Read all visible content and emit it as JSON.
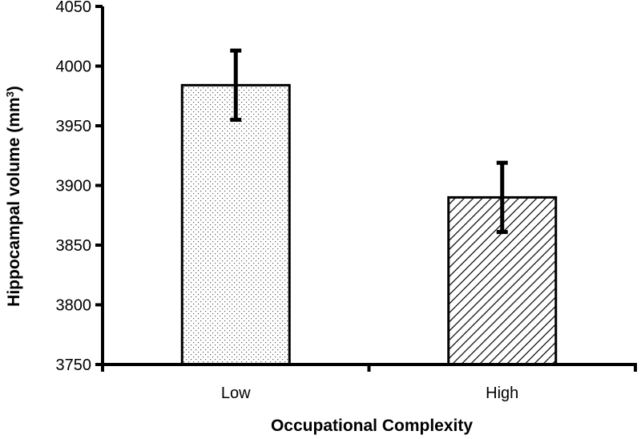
{
  "chart_data": {
    "type": "bar",
    "categories": [
      "Low",
      "High"
    ],
    "values": [
      3984,
      3890
    ],
    "error_upper": [
      4013,
      3919
    ],
    "error_lower": [
      3955,
      3861
    ],
    "fill_patterns": [
      "dots",
      "diagonal-stripes"
    ],
    "xlabel": "Occupational Complexity",
    "ylabel": "Hippocampal volume (mm",
    "ylabel_superscript": "3",
    "ylabel_suffix": ")",
    "ylim": [
      3750,
      4050
    ],
    "yticks": [
      "3750",
      "3800",
      "3850",
      "3900",
      "3950",
      "4000",
      "4050"
    ],
    "grid": false,
    "legend": "none"
  }
}
